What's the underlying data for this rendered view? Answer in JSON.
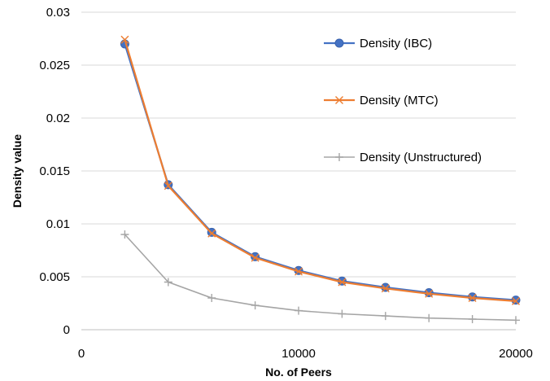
{
  "chart_data": {
    "type": "line",
    "title": "",
    "xlabel": "No. of Peers",
    "ylabel": "Density value",
    "xlim": [
      0,
      20000
    ],
    "ylim": [
      0,
      0.03
    ],
    "x_ticks": [
      0,
      10000,
      20000
    ],
    "x_tick_labels": [
      "0",
      "10000",
      "20000"
    ],
    "y_ticks": [
      0,
      0.005,
      0.01,
      0.015,
      0.02,
      0.025,
      0.03
    ],
    "y_tick_labels": [
      "0",
      "0.005",
      "0.01",
      "0.015",
      "0.02",
      "0.025",
      "0.03"
    ],
    "grid": {
      "horizontal": true,
      "vertical": false
    },
    "legend_position": "right",
    "series": [
      {
        "name": "Density (IBC)",
        "color": "#4472C4",
        "marker": "circle",
        "x": [
          2000,
          4000,
          6000,
          8000,
          10000,
          12000,
          14000,
          16000,
          18000,
          20000
        ],
        "values": [
          0.027,
          0.0137,
          0.0092,
          0.0069,
          0.0056,
          0.0046,
          0.004,
          0.0035,
          0.0031,
          0.0028
        ]
      },
      {
        "name": "Density (MTC)",
        "color": "#ED7D31",
        "marker": "x",
        "x": [
          2000,
          4000,
          6000,
          8000,
          10000,
          12000,
          14000,
          16000,
          18000,
          20000
        ],
        "values": [
          0.0274,
          0.0136,
          0.0091,
          0.0068,
          0.0055,
          0.0045,
          0.0039,
          0.0034,
          0.003,
          0.0027
        ]
      },
      {
        "name": "Density (Unstructured)",
        "color": "#A5A5A5",
        "marker": "plus",
        "x": [
          2000,
          4000,
          6000,
          8000,
          10000,
          12000,
          14000,
          16000,
          18000,
          20000
        ],
        "values": [
          0.009,
          0.0045,
          0.003,
          0.0023,
          0.0018,
          0.0015,
          0.0013,
          0.0011,
          0.001,
          0.0009
        ]
      }
    ]
  }
}
